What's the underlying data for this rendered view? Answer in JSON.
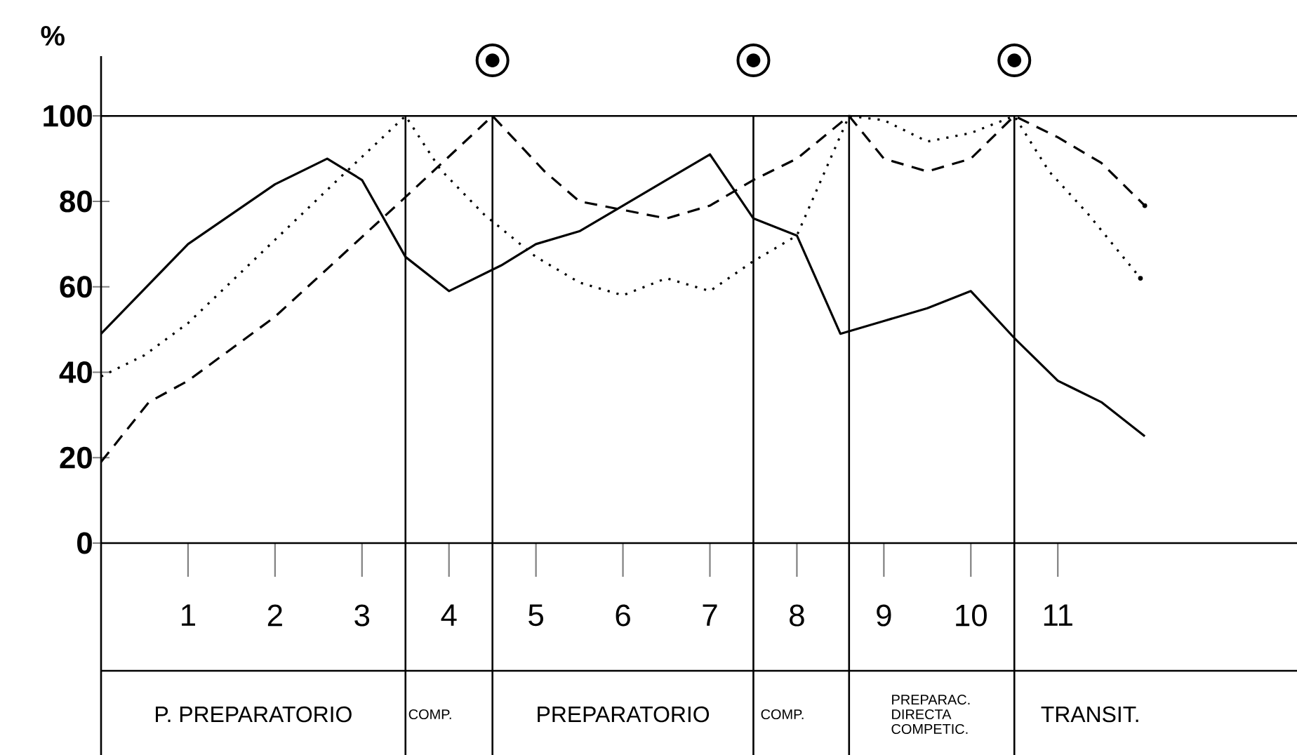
{
  "chart_data": {
    "type": "line",
    "ylabel": "%",
    "xlim": [
      0,
      13.75
    ],
    "ylim": [
      0,
      114
    ],
    "xticks": [
      1,
      2,
      3,
      4,
      5,
      6,
      7,
      8,
      9,
      10,
      11
    ],
    "yticks": [
      0,
      20,
      40,
      60,
      80,
      100
    ],
    "grid": false,
    "marker": "none",
    "series": [
      {
        "color": "#000000",
        "line_style": "solid",
        "x": [
          0,
          1,
          2,
          2.6,
          3,
          3.5,
          4,
          4.6,
          5,
          5.5,
          6,
          7,
          7.5,
          8,
          8.5,
          9,
          9.5,
          10,
          10.5,
          11,
          11.5,
          12
        ],
        "values": [
          49,
          70,
          84,
          90,
          85,
          67,
          59,
          65,
          70,
          73,
          79,
          91,
          76,
          72,
          49,
          52,
          55,
          59,
          48,
          38,
          33,
          25
        ]
      },
      {
        "color": "#000000",
        "line_style": "dotted",
        "x": [
          0,
          0.5,
          1,
          2.77,
          3.5,
          3.9,
          4.4,
          5,
          5.5,
          6,
          6.5,
          7,
          7.5,
          8,
          8.6,
          9,
          9.5,
          10,
          10.5,
          10.9,
          11.35,
          11.95
        ],
        "values": [
          39,
          44,
          51.5,
          86,
          100,
          87.5,
          77,
          67,
          61,
          58,
          62,
          59,
          66,
          72,
          100,
          99,
          94,
          96,
          100,
          87,
          77,
          62
        ]
      },
      {
        "color": "#000000",
        "line_style": "dashed",
        "x": [
          0,
          0.55,
          1,
          2,
          3.5,
          4.5,
          5.1,
          5.5,
          6,
          6.5,
          7,
          7.5,
          8,
          8.6,
          9,
          9.5,
          10,
          10.5,
          11,
          11.5,
          12
        ],
        "values": [
          19,
          33,
          38,
          53,
          81,
          100,
          87,
          80,
          78,
          76,
          79,
          85,
          90,
          100,
          90,
          87,
          90,
          100,
          95,
          89,
          79
        ]
      },
      {
        "type": "scatter",
        "color": "#000000",
        "marker": "circle",
        "x": [
          4.5,
          7.5,
          10.5
        ],
        "values": [
          113,
          113,
          113
        ]
      }
    ],
    "ref_lines": [
      {
        "axis": "y",
        "value": 100
      },
      {
        "axis": "x",
        "value": 3.5
      },
      {
        "axis": "x",
        "value": 4.5
      },
      {
        "axis": "x",
        "value": 7.5
      },
      {
        "axis": "x",
        "value": 8.6
      },
      {
        "axis": "x",
        "value": 10.5
      }
    ],
    "annotations": [
      "P. PREPARATORIO",
      "COMP.",
      "PREPARATORIO",
      "COMP.",
      "PREPARAC. DIRECTA COMPETIC.",
      "TRANSIT."
    ]
  }
}
